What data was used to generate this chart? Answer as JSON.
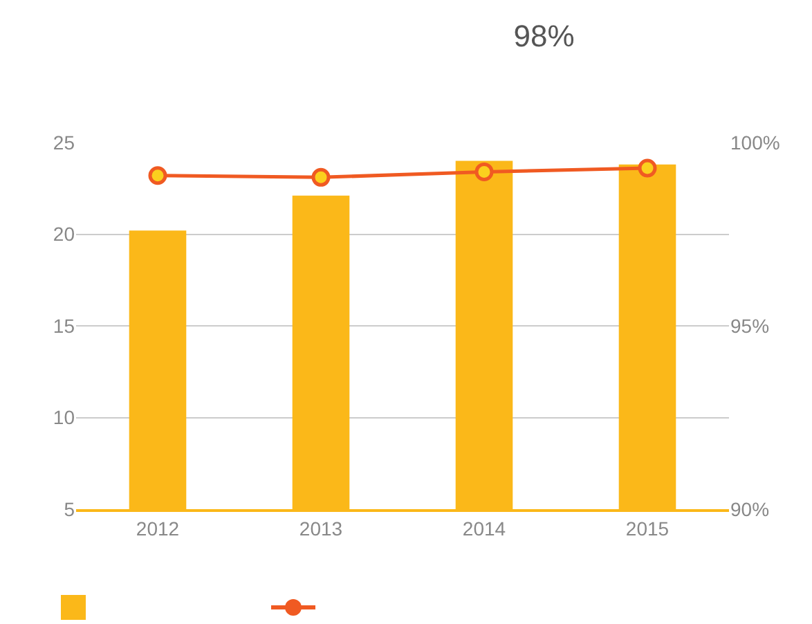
{
  "chart_data": {
    "type": "bar",
    "title": "98%",
    "categories": [
      "2012",
      "2013",
      "2014",
      "2015"
    ],
    "series": [
      {
        "color": "#fbb819",
        "values": [
          20.2,
          22.1,
          24.0,
          23.8
        ]
      },
      {
        "type": "line",
        "axis": "y2",
        "color": "#f05a22",
        "values": [
          99.1,
          99.05,
          99.2,
          99.3
        ]
      }
    ],
    "ylim": [
      5,
      25
    ],
    "yticks": [
      5,
      10,
      15,
      20,
      25
    ],
    "y2lim": [
      90,
      100
    ],
    "y2ticks": [
      {
        "value": 90,
        "label": "90%"
      },
      {
        "value": 95,
        "label": "95%"
      },
      {
        "value": 100,
        "label": "100%"
      }
    ],
    "grid": "y",
    "marker": "circle"
  }
}
